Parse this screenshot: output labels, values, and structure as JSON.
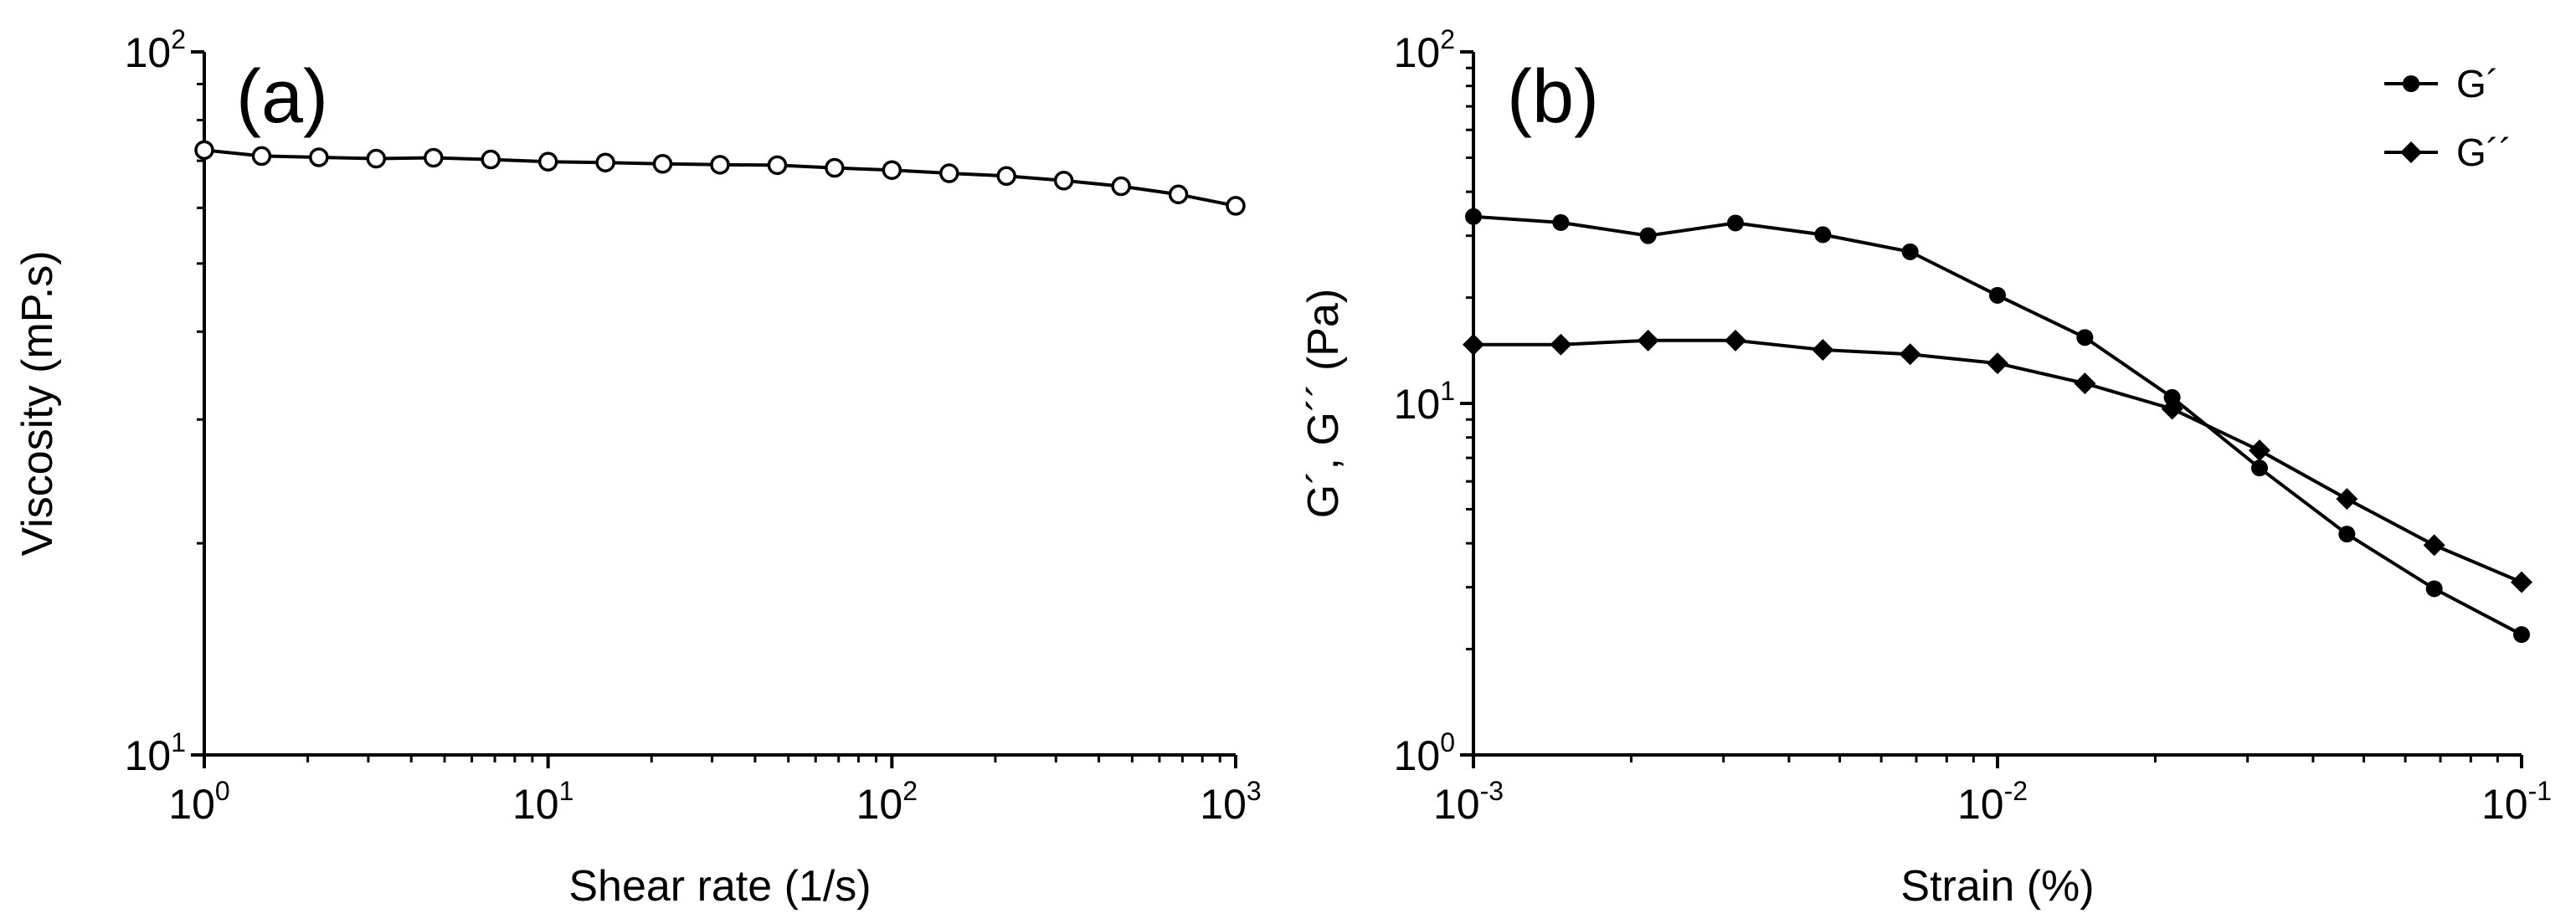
{
  "chart_data": [
    {
      "type": "line",
      "panel_label": "(a)",
      "xlabel": "Shear rate (1/s)",
      "ylabel": "Viscosity (mP.s)",
      "xscale": "log",
      "yscale": "log",
      "xlim": [
        1,
        1000
      ],
      "ylim": [
        10,
        100
      ],
      "xticks": [
        {
          "base": "10",
          "exp": "0",
          "value": 1
        },
        {
          "base": "10",
          "exp": "1",
          "value": 10
        },
        {
          "base": "10",
          "exp": "2",
          "value": 100
        },
        {
          "base": "10",
          "exp": "3",
          "value": 1000
        }
      ],
      "yticks": [
        {
          "base": "10",
          "exp": "1",
          "value": 10
        },
        {
          "base": "10",
          "exp": "2",
          "value": 100
        }
      ],
      "series": [
        {
          "name": "Viscosity",
          "marker": "open-circle",
          "x": [
            1,
            1.468,
            2.154,
            3.162,
            4.642,
            6.813,
            10,
            14.68,
            21.54,
            31.62,
            46.42,
            68.13,
            100,
            146.8,
            215.4,
            316.2,
            464.2,
            681.3,
            1000
          ],
          "y": [
            72.5,
            71.1,
            70.8,
            70.5,
            70.7,
            70.3,
            69.8,
            69.6,
            69.3,
            69.1,
            69.0,
            68.4,
            67.9,
            67.2,
            66.6,
            65.6,
            64.4,
            62.7,
            60.4
          ]
        }
      ]
    },
    {
      "type": "line",
      "panel_label": "(b)",
      "xlabel": "Strain (%)",
      "ylabel": "G´, G´´ (Pa)",
      "xscale": "log",
      "yscale": "log",
      "xlim": [
        0.001,
        0.1
      ],
      "ylim": [
        1,
        100
      ],
      "xticks": [
        {
          "base": "10",
          "exp": "-3",
          "value": 0.001
        },
        {
          "base": "10",
          "exp": "-2",
          "value": 0.01
        },
        {
          "base": "10",
          "exp": "-1",
          "value": 0.1
        }
      ],
      "yticks": [
        {
          "base": "10",
          "exp": "0",
          "value": 1
        },
        {
          "base": "10",
          "exp": "1",
          "value": 10
        },
        {
          "base": "10",
          "exp": "2",
          "value": 100
        }
      ],
      "legend_position": "top-right",
      "series": [
        {
          "name": "G´",
          "marker": "filled-circle",
          "x": [
            0.001,
            0.001468,
            0.002154,
            0.003162,
            0.004642,
            0.006813,
            0.01,
            0.01468,
            0.02154,
            0.03162,
            0.04642,
            0.06813,
            0.1
          ],
          "y": [
            34,
            32.7,
            30,
            32.6,
            30.2,
            27,
            20.3,
            15.4,
            10.4,
            6.55,
            4.25,
            2.97,
            2.2
          ]
        },
        {
          "name": "G´´",
          "marker": "filled-diamond",
          "x": [
            0.001,
            0.001468,
            0.002154,
            0.003162,
            0.004642,
            0.006813,
            0.01,
            0.01468,
            0.02154,
            0.03162,
            0.04642,
            0.06813,
            0.1
          ],
          "y": [
            14.7,
            14.7,
            15.1,
            15.1,
            14.2,
            13.8,
            13,
            11.4,
            9.65,
            7.35,
            5.35,
            3.95,
            3.1
          ]
        }
      ]
    }
  ]
}
